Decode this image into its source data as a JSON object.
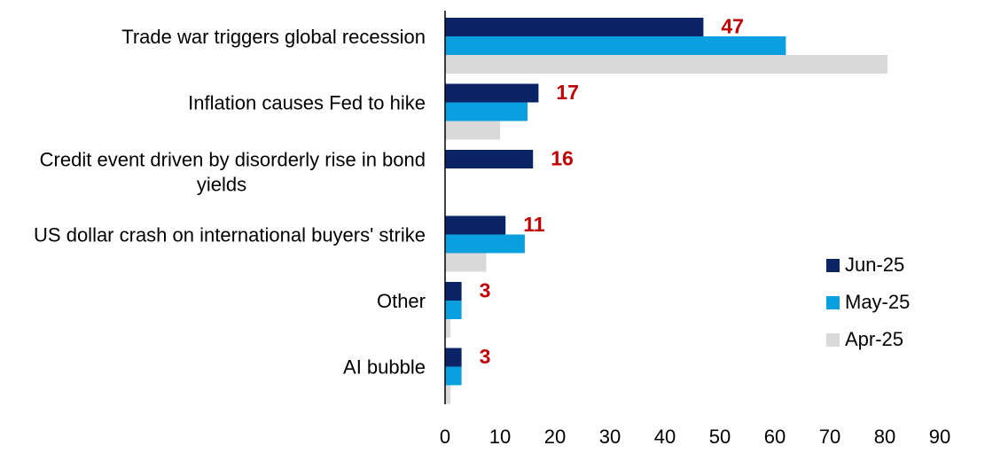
{
  "chart_data": {
    "type": "bar",
    "orientation": "horizontal",
    "categories": [
      [
        "Trade war triggers global recession"
      ],
      [
        "Inflation causes Fed to hike"
      ],
      [
        "Credit event driven by disorderly rise in bond",
        "yields"
      ],
      [
        "US dollar crash on international buyers' strike"
      ],
      [
        "Other"
      ],
      [
        "AI bubble"
      ]
    ],
    "series": [
      {
        "name": "Jun-25",
        "color": "#0a2466",
        "values": [
          47,
          17,
          16,
          11,
          3,
          3
        ]
      },
      {
        "name": "May-25",
        "color": "#0aa0e0",
        "values": [
          62,
          15,
          0,
          14.5,
          3,
          3
        ]
      },
      {
        "name": "Apr-25",
        "color": "#d9d9d9",
        "values": [
          80.5,
          10,
          0,
          7.5,
          1,
          1
        ]
      }
    ],
    "data_labels": [
      "47",
      "17",
      "16",
      "11",
      "3",
      "3"
    ],
    "data_label_color": "#c00000",
    "xlim": [
      0,
      90
    ],
    "xticks": [
      "0",
      "10",
      "20",
      "30",
      "40",
      "50",
      "60",
      "70",
      "80",
      "90"
    ],
    "legend_position": "right",
    "grid": false
  }
}
